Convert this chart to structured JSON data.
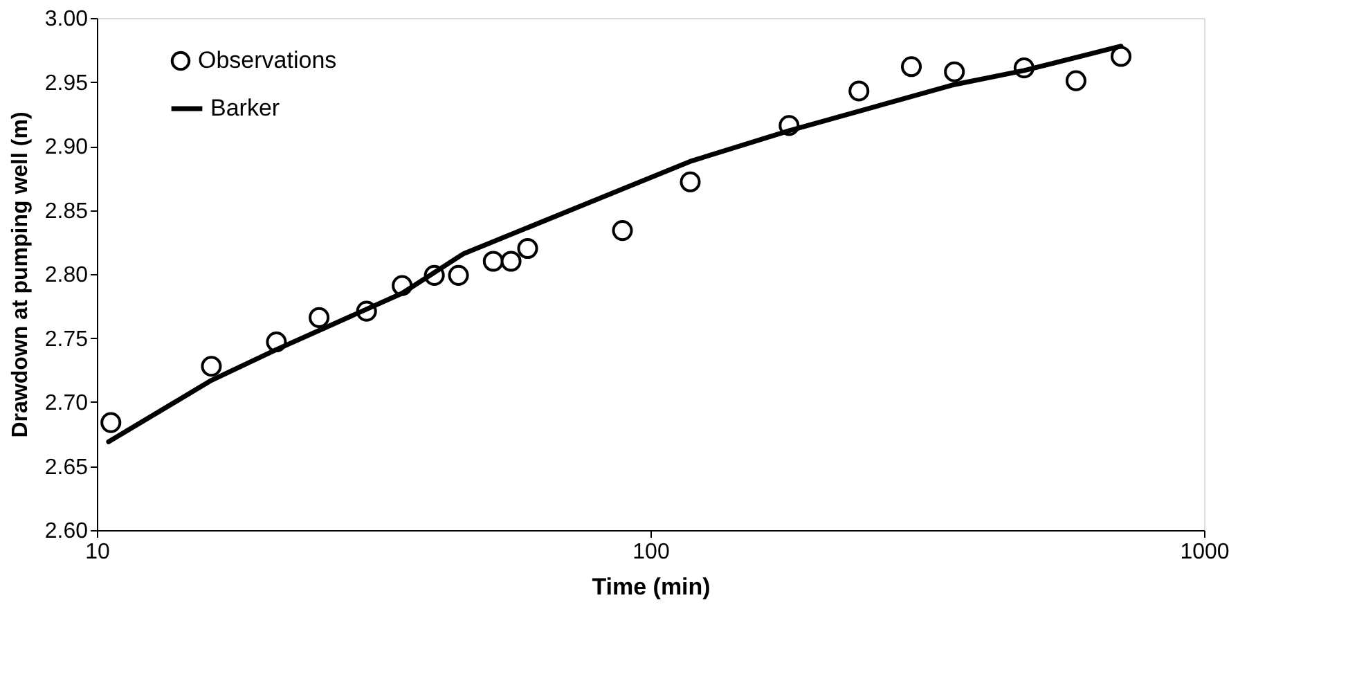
{
  "chart_data": {
    "type": "scatter",
    "xlabel": "Time (min)",
    "ylabel": "Drawdown at pumping well (m)",
    "log": "x",
    "grid": false,
    "legend": "top left",
    "xlim": [
      10,
      1000
    ],
    "xticks": [
      10,
      100,
      {
        "value": 1000,
        "label": "1000"
      }
    ],
    "ylim": [
      2.6,
      3.0
    ],
    "yticks": [
      {
        "value": 2.6,
        "label": "2.60"
      },
      {
        "value": 2.65,
        "label": "2.65"
      },
      {
        "value": 2.7,
        "label": "2.70"
      },
      {
        "value": 2.75,
        "label": "2.75"
      },
      {
        "value": 2.8,
        "label": "2.80"
      },
      {
        "value": 2.85,
        "label": "2.85"
      },
      {
        "value": 2.9,
        "label": "2.90"
      },
      {
        "value": 2.95,
        "label": "2.95"
      },
      {
        "value": 3.0,
        "label": "3.00"
      }
    ],
    "series": [
      {
        "name": "Observations",
        "marker": "circle",
        "color": "#000000",
        "x": [
          10.6,
          16.1,
          21.1,
          25.2,
          30.7,
          35.6,
          40.7,
          45,
          52,
          56,
          60,
          89,
          118,
          178,
          238,
          296,
          354,
          473,
          587,
          708
        ],
        "values": [
          2.684,
          2.728,
          2.747,
          2.766,
          2.771,
          2.791,
          2.799,
          2.799,
          2.81,
          2.81,
          2.82,
          2.834,
          2.872,
          2.916,
          2.943,
          2.962,
          2.958,
          2.961,
          2.951,
          2.97
        ]
      },
      {
        "name": "Barker",
        "type": "line",
        "marker": "none",
        "line_style": "solid",
        "color": "#000000",
        "x": [
          10.5,
          16.1,
          21.1,
          35.6,
          46,
          75.7,
          118,
          178,
          354,
          473,
          708
        ],
        "values": [
          2.669,
          2.717,
          2.741,
          2.785,
          2.816,
          2.854,
          2.888,
          2.912,
          2.948,
          2.959,
          2.978
        ]
      }
    ]
  }
}
